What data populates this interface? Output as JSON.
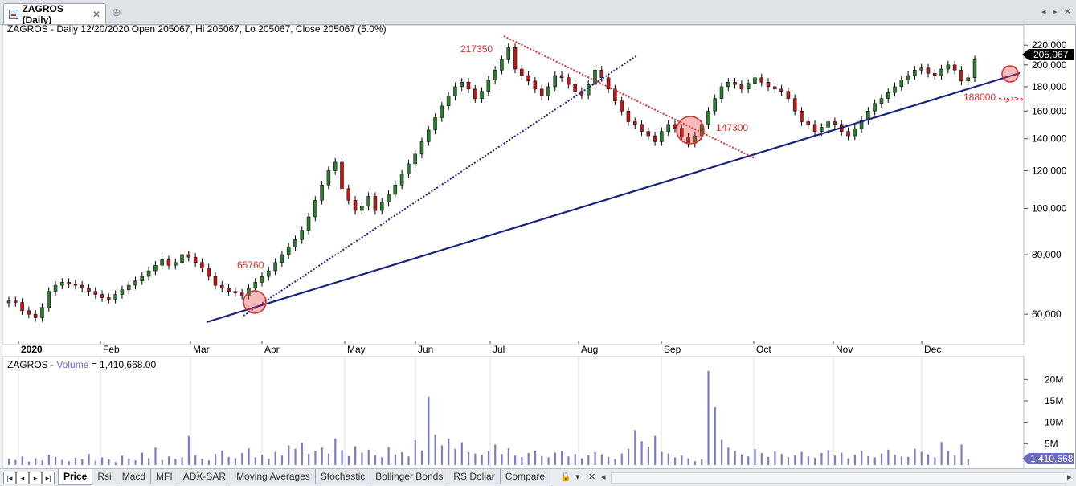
{
  "window": {
    "tab_title": "ZAGROS (Daily)",
    "nav_left": "◂",
    "nav_right": "▸",
    "close": "✕"
  },
  "price_pane": {
    "header": "ZAGROS - Daily 12/20/2020 Open 205067, Hi 205067, Lo 205067, Close 205067 (5.0%)",
    "last_price_label": "205,067",
    "price_ticks": [
      "220,000",
      "200,000",
      "180,000",
      "160,000",
      "140,000",
      "120,000",
      "100,000",
      "80,000",
      "60,000"
    ],
    "date_ticks": [
      "2020",
      "Feb",
      "Mar",
      "Apr",
      "May",
      "Jun",
      "Jul",
      "Aug",
      "Sep",
      "Oct",
      "Nov",
      "Dec"
    ],
    "annotations": {
      "a1": "65760",
      "a2": "217350",
      "a3": "147300",
      "a4": "188000",
      "a4_note": "محدوده"
    }
  },
  "volume_pane": {
    "header_prefix": "ZAGROS - ",
    "header_series": "Volume",
    "header_value": " = 1,410,668.00",
    "last_volume_label": "1,410,668",
    "volume_ticks": [
      "20M",
      "15M",
      "10M",
      "5M"
    ]
  },
  "sheet_tabs": [
    "Price",
    "Rsi",
    "Macd",
    "MFI",
    "ADX-SAR",
    "Moving Averages",
    "Stochastic",
    "Bollinger Bonds",
    "RS Dollar",
    "Compare"
  ],
  "colors": {
    "up": "#2e7d32",
    "down": "#b71c1c",
    "trend": "#1a237e",
    "red_line": "#d32f2f",
    "volume": "#7b7bc8"
  },
  "chart_data": {
    "type": "candlestick",
    "scale": "log",
    "ylim": [
      52000,
      228000
    ],
    "x_months": [
      "2020",
      "Feb",
      "Mar",
      "Apr",
      "May",
      "Jun",
      "Jul",
      "Aug",
      "Sep",
      "Oct",
      "Nov",
      "Dec"
    ],
    "closes": [
      64000,
      63500,
      61000,
      60000,
      59000,
      62000,
      67000,
      69000,
      70000,
      69500,
      69000,
      68000,
      67000,
      66000,
      65000,
      64500,
      66000,
      67500,
      69000,
      70500,
      72000,
      74000,
      76000,
      78000,
      76000,
      77000,
      80000,
      79000,
      77000,
      75000,
      72000,
      69000,
      68000,
      67000,
      66500,
      65760,
      68000,
      70000,
      72000,
      74000,
      77000,
      80000,
      83000,
      86000,
      90000,
      96000,
      104000,
      112000,
      120000,
      125000,
      110000,
      104000,
      99000,
      101000,
      106000,
      99000,
      103000,
      107000,
      112000,
      118000,
      124000,
      130000,
      138000,
      146000,
      155000,
      164000,
      172000,
      180000,
      184000,
      178000,
      170000,
      176000,
      186000,
      195000,
      205000,
      217350,
      196000,
      190000,
      185000,
      178000,
      172000,
      180000,
      190000,
      188000,
      182000,
      176000,
      173000,
      182000,
      195000,
      188000,
      178000,
      168000,
      160000,
      152000,
      150000,
      145000,
      142000,
      138000,
      145000,
      150000,
      147300,
      141000,
      137000,
      142000,
      150000,
      160000,
      170000,
      180000,
      184000,
      182000,
      178000,
      183000,
      188000,
      184000,
      180000,
      178000,
      176000,
      170000,
      160000,
      152000,
      150000,
      145000,
      148000,
      152000,
      150000,
      145000,
      142000,
      147000,
      153000,
      160000,
      166000,
      170000,
      175000,
      180000,
      186000,
      190000,
      195000,
      197000,
      192000,
      190000,
      196000,
      200000,
      195000,
      185000,
      188000,
      205067
    ],
    "volume_millions": [
      1.5,
      1.2,
      2.0,
      0.8,
      1.6,
      1.1,
      2.4,
      1.9,
      1.2,
      0.9,
      1.7,
      1.4,
      2.6,
      1.0,
      1.8,
      1.3,
      0.7,
      2.2,
      1.5,
      1.1,
      2.9,
      1.6,
      4.1,
      1.2,
      2.0,
      1.4,
      1.8,
      6.8,
      2.3,
      1.5,
      1.1,
      2.6,
      3.4,
      1.9,
      1.6,
      2.8,
      3.9,
      1.8,
      2.4,
      1.5,
      3.1,
      2.2,
      4.6,
      3.8,
      5.2,
      2.6,
      3.3,
      4.1,
      2.7,
      6.2,
      3.5,
      2.1,
      4.4,
      2.9,
      3.6,
      2.3,
      1.8,
      4.2,
      2.5,
      3.0,
      2.0,
      5.8,
      3.4,
      16.0,
      7.1,
      4.6,
      6.2,
      3.8,
      5.3,
      3.0,
      2.7,
      2.4,
      3.3,
      4.8,
      2.6,
      3.9,
      2.2,
      1.9,
      2.8,
      3.4,
      2.1,
      1.8,
      2.9,
      3.3,
      2.0,
      2.6,
      1.6,
      2.3,
      3.0,
      2.5,
      1.9,
      1.4,
      2.7,
      3.8,
      8.2,
      5.6,
      4.3,
      6.8,
      3.1,
      2.7,
      1.8,
      2.2,
      1.6,
      0.9,
      1.3,
      22.0,
      13.5,
      5.9,
      4.1,
      3.3,
      2.5,
      2.0,
      3.7,
      2.8,
      1.9,
      3.2,
      2.6,
      1.8,
      2.3,
      3.1,
      2.0,
      1.7,
      2.8,
      3.5,
      2.2,
      2.9,
      1.6,
      2.4,
      3.3,
      2.1,
      1.8,
      2.7,
      3.6,
      2.4,
      2.0,
      1.9,
      3.8,
      3.1,
      2.5,
      1.8,
      5.4,
      3.3,
      2.2,
      4.8,
      1.41
    ]
  }
}
